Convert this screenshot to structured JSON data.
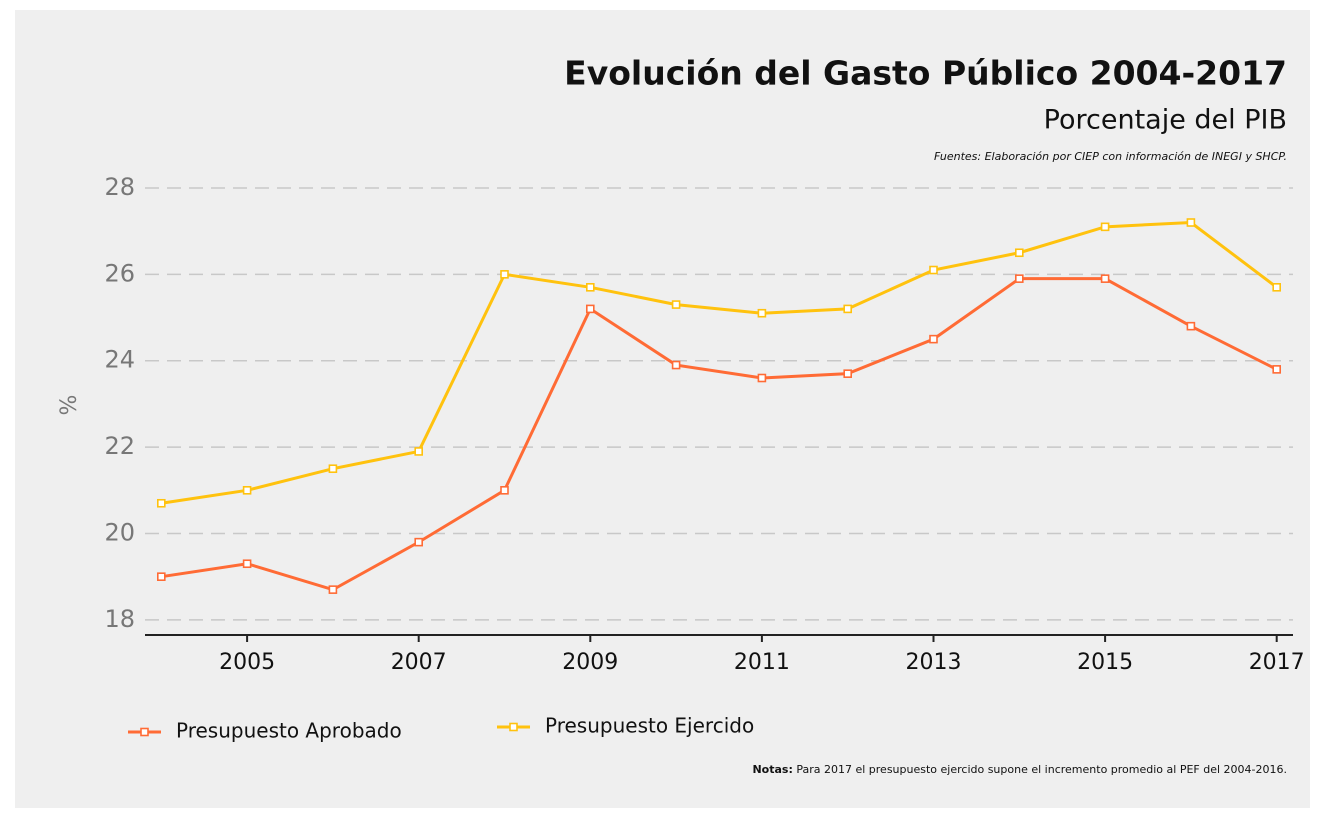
{
  "chart_data": {
    "type": "line",
    "title": "Evolución del Gasto Público 2004-2017",
    "subtitle": "Porcentaje del PIB",
    "source": "Fuentes: Elaboración por CIEP con información de INEGI y SHCP.",
    "y_label": "%",
    "note_label": "Notas:",
    "note_text": "Para 2017 el presupuesto ejercido supone el incremento promedio al PEF del 2004-2016.",
    "x": [
      2004,
      2005,
      2006,
      2007,
      2008,
      2009,
      2010,
      2011,
      2012,
      2013,
      2014,
      2015,
      2016,
      2017
    ],
    "series": [
      {
        "name": "Presupuesto Aprobado",
        "color": "#ff6b35",
        "values": [
          19.0,
          19.3,
          18.7,
          19.8,
          21.0,
          25.2,
          23.9,
          23.6,
          23.7,
          24.5,
          25.9,
          25.9,
          24.8,
          23.8
        ]
      },
      {
        "name": "Presupuesto Ejercido",
        "color": "#ffc20e",
        "values": [
          20.7,
          21.0,
          21.5,
          21.9,
          26.0,
          25.7,
          25.3,
          25.1,
          25.2,
          26.1,
          26.5,
          27.1,
          27.2,
          25.7
        ]
      }
    ],
    "xlim": [
      2003.81,
      2017.19
    ],
    "xticks": [
      2005,
      2007,
      2009,
      2011,
      2013,
      2015,
      2017
    ],
    "ylim": [
      17.65,
      28.3
    ],
    "yticks": [
      18,
      20,
      22,
      24,
      26,
      28
    ],
    "grid": true
  }
}
